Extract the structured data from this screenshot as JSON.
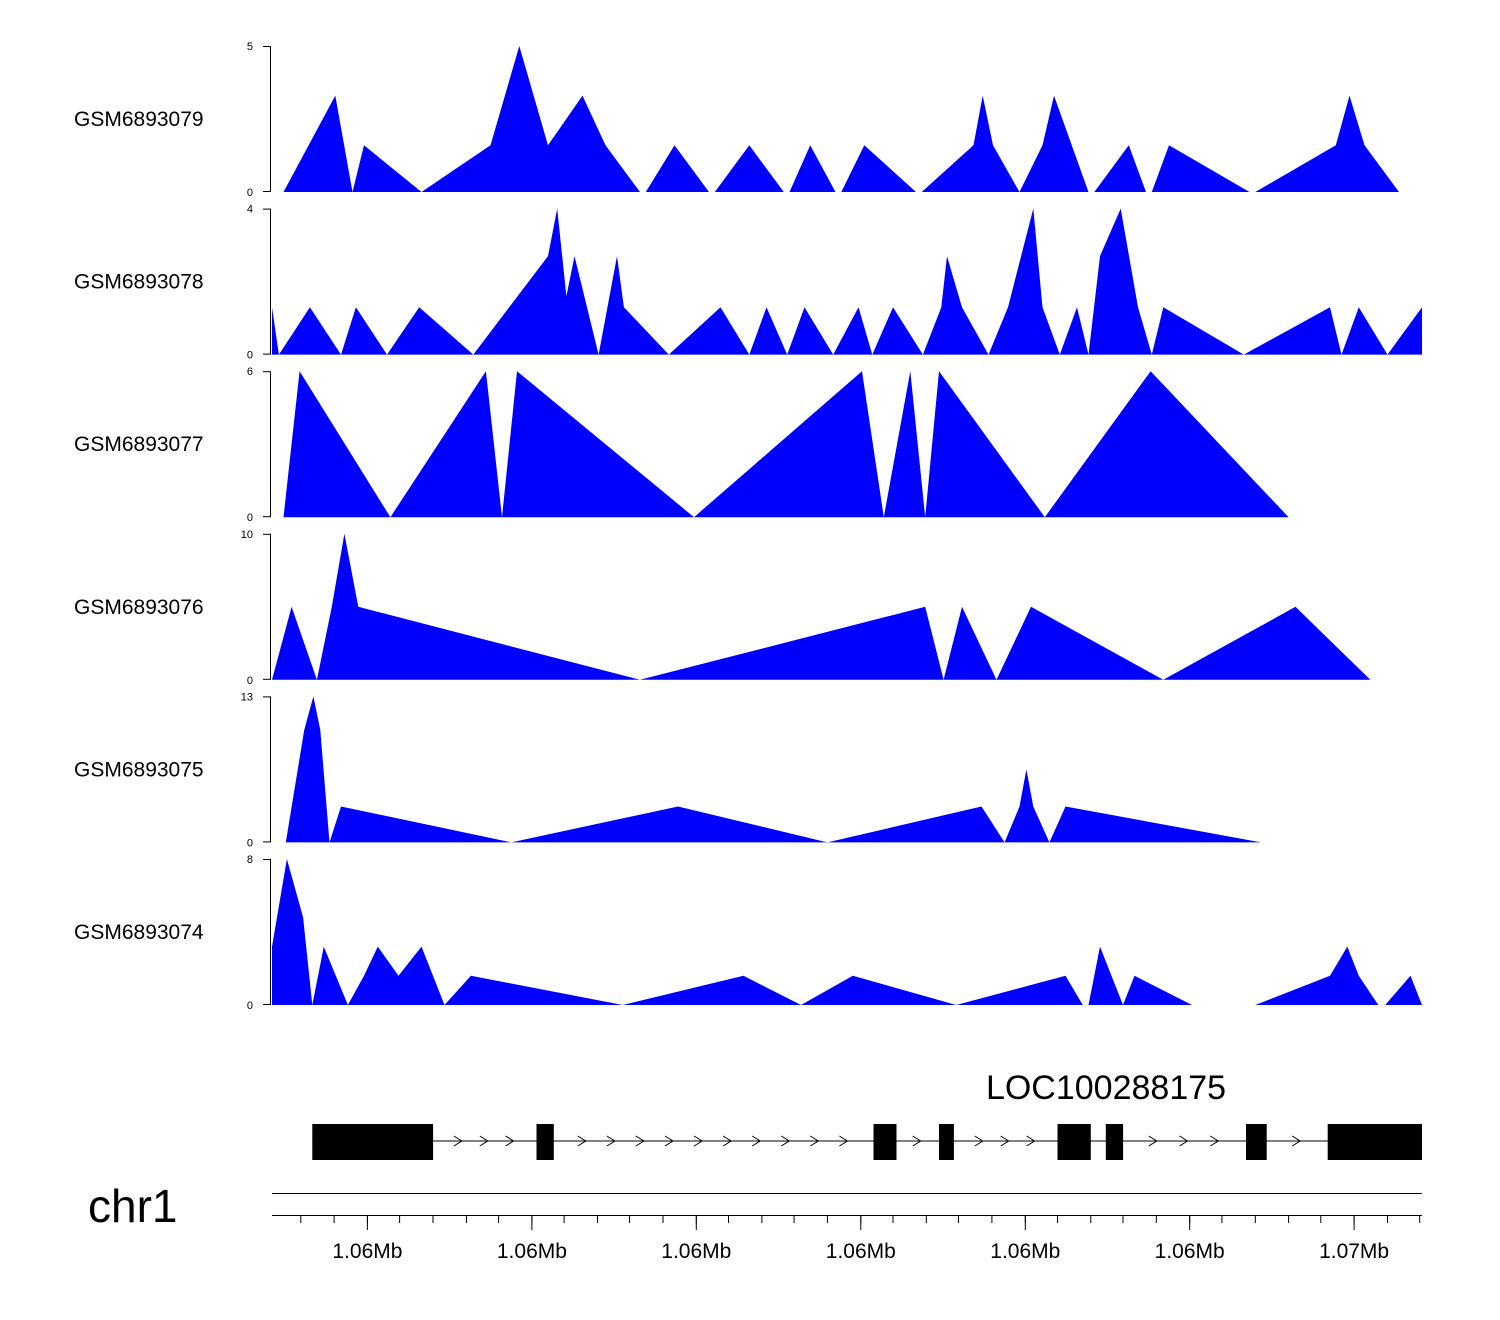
{
  "chart_data": {
    "type": "area",
    "title": "",
    "x_range_bp": [
      1056000,
      1073500
    ],
    "track_color": "#0000ff",
    "tracks": [
      {
        "name": "GSM6893079",
        "ymax": 5,
        "yticks": [
          "0",
          "5"
        ],
        "points": [
          [
            0.01,
            0
          ],
          [
            0.055,
            3.3
          ],
          [
            0.07,
            0
          ],
          [
            0.08,
            1.6
          ],
          [
            0.13,
            0
          ],
          [
            0.19,
            1.6
          ],
          [
            0.215,
            5
          ],
          [
            0.24,
            1.6
          ],
          [
            0.27,
            3.3
          ],
          [
            0.29,
            1.6
          ],
          [
            0.32,
            0
          ],
          [
            0.325,
            0
          ],
          [
            0.35,
            1.6
          ],
          [
            0.38,
            0
          ],
          [
            0.385,
            0
          ],
          [
            0.415,
            1.6
          ],
          [
            0.445,
            0
          ],
          [
            0.45,
            0
          ],
          [
            0.468,
            1.6
          ],
          [
            0.49,
            0
          ],
          [
            0.495,
            0
          ],
          [
            0.515,
            1.6
          ],
          [
            0.56,
            0
          ],
          [
            0.565,
            0
          ],
          [
            0.61,
            1.6
          ],
          [
            0.618,
            3.3
          ],
          [
            0.627,
            1.6
          ],
          [
            0.65,
            0
          ],
          [
            0.67,
            1.6
          ],
          [
            0.68,
            3.3
          ],
          [
            0.71,
            0
          ],
          [
            0.715,
            0
          ],
          [
            0.745,
            1.6
          ],
          [
            0.76,
            0
          ],
          [
            0.765,
            0
          ],
          [
            0.78,
            1.6
          ],
          [
            0.85,
            0
          ],
          [
            0.855,
            0
          ],
          [
            0.925,
            1.6
          ],
          [
            0.937,
            3.3
          ],
          [
            0.95,
            1.6
          ],
          [
            0.98,
            0
          ]
        ]
      },
      {
        "name": "GSM6893078",
        "ymax": 4,
        "yticks": [
          "0",
          "4"
        ],
        "points": [
          [
            0,
            1.3
          ],
          [
            0.006,
            0
          ],
          [
            0.033,
            1.3
          ],
          [
            0.06,
            0
          ],
          [
            0.073,
            1.3
          ],
          [
            0.1,
            0
          ],
          [
            0.128,
            1.3
          ],
          [
            0.175,
            0
          ],
          [
            0.24,
            2.7
          ],
          [
            0.248,
            4
          ],
          [
            0.256,
            1.6
          ],
          [
            0.263,
            2.7
          ],
          [
            0.284,
            0
          ],
          [
            0.3,
            2.7
          ],
          [
            0.306,
            1.3
          ],
          [
            0.345,
            0
          ],
          [
            0.39,
            1.3
          ],
          [
            0.415,
            0
          ],
          [
            0.43,
            1.3
          ],
          [
            0.448,
            0
          ],
          [
            0.463,
            1.3
          ],
          [
            0.488,
            0
          ],
          [
            0.51,
            1.3
          ],
          [
            0.522,
            0
          ],
          [
            0.54,
            1.3
          ],
          [
            0.566,
            0
          ],
          [
            0.582,
            1.3
          ],
          [
            0.587,
            2.7
          ],
          [
            0.6,
            1.3
          ],
          [
            0.623,
            0
          ],
          [
            0.64,
            1.3
          ],
          [
            0.662,
            4
          ],
          [
            0.67,
            1.3
          ],
          [
            0.685,
            0
          ],
          [
            0.7,
            1.3
          ],
          [
            0.71,
            0
          ],
          [
            0.72,
            2.7
          ],
          [
            0.738,
            4
          ],
          [
            0.753,
            1.3
          ],
          [
            0.765,
            0
          ],
          [
            0.775,
            1.3
          ],
          [
            0.845,
            0
          ],
          [
            0.92,
            1.3
          ],
          [
            0.93,
            0
          ],
          [
            0.945,
            1.3
          ],
          [
            0.97,
            0
          ],
          [
            1,
            1.3
          ]
        ]
      },
      {
        "name": "GSM6893077",
        "ymax": 6,
        "yticks": [
          "0",
          "6"
        ],
        "points": [
          [
            0.01,
            0
          ],
          [
            0.024,
            6
          ],
          [
            0.103,
            0
          ],
          [
            0.186,
            6
          ],
          [
            0.2,
            0
          ],
          [
            0.213,
            6
          ],
          [
            0.367,
            0
          ],
          [
            0.513,
            6
          ],
          [
            0.532,
            0
          ],
          [
            0.555,
            6
          ],
          [
            0.568,
            0
          ],
          [
            0.58,
            6
          ],
          [
            0.672,
            0
          ],
          [
            0.764,
            6
          ],
          [
            0.884,
            0
          ]
        ]
      },
      {
        "name": "GSM6893076",
        "ymax": 10,
        "yticks": [
          "0",
          "10"
        ],
        "points": [
          [
            0,
            0
          ],
          [
            0.017,
            5
          ],
          [
            0.039,
            0
          ],
          [
            0.052,
            5
          ],
          [
            0.063,
            10
          ],
          [
            0.075,
            5
          ],
          [
            0.32,
            0
          ],
          [
            0.568,
            5
          ],
          [
            0.584,
            0
          ],
          [
            0.6,
            5
          ],
          [
            0.63,
            0
          ],
          [
            0.66,
            5
          ],
          [
            0.775,
            0
          ],
          [
            0.89,
            5
          ],
          [
            0.955,
            0
          ]
        ]
      },
      {
        "name": "GSM6893075",
        "ymax": 13,
        "yticks": [
          "0",
          "13"
        ],
        "points": [
          [
            0.012,
            0
          ],
          [
            0.028,
            10
          ],
          [
            0.036,
            13
          ],
          [
            0.042,
            10
          ],
          [
            0.05,
            0
          ],
          [
            0.06,
            3.2
          ],
          [
            0.208,
            0
          ],
          [
            0.353,
            3.2
          ],
          [
            0.483,
            0
          ],
          [
            0.617,
            3.2
          ],
          [
            0.637,
            0
          ],
          [
            0.65,
            3.2
          ],
          [
            0.656,
            6.5
          ],
          [
            0.662,
            3.2
          ],
          [
            0.676,
            0
          ],
          [
            0.69,
            3.2
          ],
          [
            0.86,
            0
          ]
        ]
      },
      {
        "name": "GSM6893074",
        "ymax": 8,
        "yticks": [
          "0",
          "8"
        ],
        "points": [
          [
            0,
            3.2
          ],
          [
            0.013,
            8
          ],
          [
            0.027,
            4.8
          ],
          [
            0.035,
            0
          ],
          [
            0.045,
            3.2
          ],
          [
            0.066,
            0
          ],
          [
            0.08,
            1.6
          ],
          [
            0.092,
            3.2
          ],
          [
            0.11,
            1.6
          ],
          [
            0.13,
            3.2
          ],
          [
            0.14,
            1.6
          ],
          [
            0.15,
            0
          ],
          [
            0.173,
            1.6
          ],
          [
            0.305,
            0
          ],
          [
            0.41,
            1.6
          ],
          [
            0.46,
            0
          ],
          [
            0.505,
            1.6
          ],
          [
            0.595,
            0
          ],
          [
            0.69,
            1.6
          ],
          [
            0.705,
            0
          ],
          [
            0.71,
            0
          ],
          [
            0.72,
            3.2
          ],
          [
            0.74,
            0
          ],
          [
            0.75,
            1.6
          ],
          [
            0.8,
            0
          ],
          [
            0.855,
            0
          ],
          [
            0.92,
            1.6
          ],
          [
            0.935,
            3.2
          ],
          [
            0.945,
            1.6
          ],
          [
            0.962,
            0
          ],
          [
            0.968,
            0
          ],
          [
            0.99,
            1.6
          ],
          [
            1,
            0
          ]
        ]
      }
    ],
    "gene": {
      "name": "LOC100288175",
      "strand": "+",
      "exons": [
        [
          0.035,
          0.14
        ],
        [
          0.23,
          0.245
        ],
        [
          0.523,
          0.543
        ],
        [
          0.58,
          0.593
        ],
        [
          0.683,
          0.712
        ],
        [
          0.725,
          0.74
        ],
        [
          0.847,
          0.865
        ],
        [
          0.918,
          1.0
        ]
      ]
    },
    "chromosome": "chr1",
    "xticks": [
      {
        "label": "1.06Mb",
        "pos": 0.083
      },
      {
        "label": "1.06Mb",
        "pos": 0.226
      },
      {
        "label": "1.06Mb",
        "pos": 0.369
      },
      {
        "label": "1.06Mb",
        "pos": 0.512
      },
      {
        "label": "1.06Mb",
        "pos": 0.655
      },
      {
        "label": "1.06Mb",
        "pos": 0.798
      },
      {
        "label": "1.07Mb",
        "pos": 0.941
      }
    ],
    "minor_ticks": [
      0.025,
      0.054,
      0.083,
      0.111,
      0.14,
      0.169,
      0.197,
      0.226,
      0.254,
      0.283,
      0.311,
      0.34,
      0.369,
      0.397,
      0.426,
      0.454,
      0.483,
      0.512,
      0.54,
      0.569,
      0.597,
      0.626,
      0.655,
      0.683,
      0.712,
      0.74,
      0.769,
      0.798,
      0.826,
      0.855,
      0.884,
      0.912,
      0.941,
      0.97,
      0.998
    ]
  }
}
